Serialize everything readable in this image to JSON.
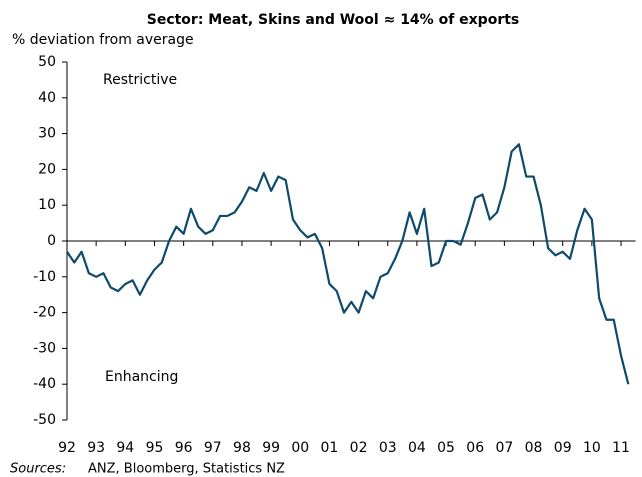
{
  "chart_data": {
    "type": "line",
    "title": "Sector: Meat, Skins and Wool ≈ 14% of exports",
    "y_label": "% deviation from average",
    "annotations": [
      "Restrictive",
      "Enhancing"
    ],
    "source_label": "Sources:",
    "source": "ANZ, Bloomberg, Statistics NZ",
    "x": [
      1992,
      1992.25,
      1992.5,
      1992.75,
      1993,
      1993.25,
      1993.5,
      1993.75,
      1994,
      1994.25,
      1994.5,
      1994.75,
      1995,
      1995.25,
      1995.5,
      1995.75,
      1996,
      1996.25,
      1996.5,
      1996.75,
      1997,
      1997.25,
      1997.5,
      1997.75,
      1998,
      1998.25,
      1998.5,
      1998.75,
      1999,
      1999.25,
      1999.5,
      1999.75,
      2000,
      2000.25,
      2000.5,
      2000.75,
      2001,
      2001.25,
      2001.5,
      2001.75,
      2002,
      2002.25,
      2002.5,
      2002.75,
      2003,
      2003.25,
      2003.5,
      2003.75,
      2004,
      2004.25,
      2004.5,
      2004.75,
      2005,
      2005.25,
      2005.5,
      2005.75,
      2006,
      2006.25,
      2006.5,
      2006.75,
      2007,
      2007.25,
      2007.5,
      2007.75,
      2008,
      2008.25,
      2008.5,
      2008.75,
      2009,
      2009.25,
      2009.5,
      2009.75,
      2010,
      2010.25,
      2010.5,
      2010.75,
      2011,
      2011.25
    ],
    "series": [
      {
        "name": "Sector: Meat, Skins and Wool",
        "color": "#0d4a6b",
        "values": [
          -3,
          -6,
          -3,
          -9,
          -10,
          -9,
          -13,
          -14,
          -12,
          -11,
          -15,
          -11,
          -8,
          -6,
          0,
          4,
          2,
          9,
          4,
          2,
          3,
          7,
          7,
          8,
          11,
          15,
          14,
          19,
          14,
          18,
          17,
          6,
          3,
          1,
          2,
          -2,
          -12,
          -14,
          -20,
          -17,
          -20,
          -14,
          -16,
          -10,
          -9,
          -5,
          0,
          8,
          2,
          9,
          -7,
          -6,
          0,
          0,
          -1,
          5,
          12,
          13,
          6,
          8,
          15,
          25,
          27,
          18,
          18,
          10,
          -2,
          -4,
          -3,
          -5,
          3,
          9,
          6,
          -16,
          -22,
          -22,
          -32,
          -40
        ]
      }
    ],
    "xlim": [
      1992,
      2011.5
    ],
    "xticks": [
      {
        "value": 1992,
        "label": "92"
      },
      {
        "value": 1993,
        "label": "93"
      },
      {
        "value": 1994,
        "label": "94"
      },
      {
        "value": 1995,
        "label": "95"
      },
      {
        "value": 1996,
        "label": "96"
      },
      {
        "value": 1997,
        "label": "97"
      },
      {
        "value": 1998,
        "label": "98"
      },
      {
        "value": 1999,
        "label": "99"
      },
      {
        "value": 2000,
        "label": "00"
      },
      {
        "value": 2001,
        "label": "01"
      },
      {
        "value": 2002,
        "label": "02"
      },
      {
        "value": 2003,
        "label": "03"
      },
      {
        "value": 2004,
        "label": "04"
      },
      {
        "value": 2005,
        "label": "05"
      },
      {
        "value": 2006,
        "label": "06"
      },
      {
        "value": 2007,
        "label": "07"
      },
      {
        "value": 2008,
        "label": "08"
      },
      {
        "value": 2009,
        "label": "09"
      },
      {
        "value": 2010,
        "label": "10"
      },
      {
        "value": 2011,
        "label": "11"
      }
    ],
    "ylim": [
      -50,
      50
    ],
    "yticks": [
      -50,
      -40,
      -30,
      -20,
      -10,
      0,
      10,
      20,
      30,
      40,
      50
    ],
    "grid": false
  }
}
